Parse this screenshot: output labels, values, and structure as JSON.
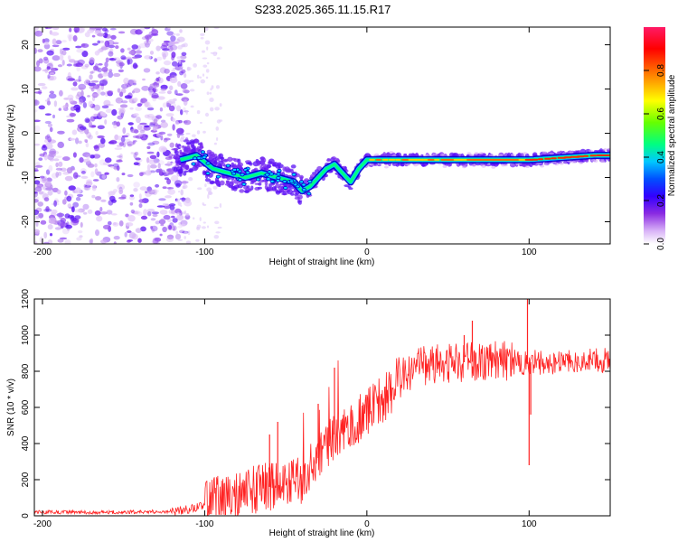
{
  "title": "S233.2025.365.11.15.R17",
  "chart_data": [
    {
      "type": "heatmap",
      "name": "spectrogram",
      "xlabel": "Height of straight line (km)",
      "ylabel": "Frequency (Hz)",
      "xlim": [
        -205,
        150
      ],
      "ylim": [
        -25,
        24
      ],
      "xticks": [
        -200,
        -100,
        0,
        100
      ],
      "yticks": [
        -20,
        -10,
        0,
        10,
        20
      ],
      "colorbar": {
        "label": "Normalized spectral amplitude",
        "range": [
          0,
          1
        ],
        "ticks": [
          0.0,
          0.2,
          0.4,
          0.6,
          0.8
        ],
        "colors": [
          "#ffffff",
          "#d9b3f7",
          "#9b59f0",
          "#6a00ff",
          "#0000ff",
          "#00c8ff",
          "#00ff80",
          "#66ff00",
          "#ffff00",
          "#ff8000",
          "#ff0000",
          "#ff1a66"
        ]
      },
      "ridge": {
        "x": [
          -115,
          -105,
          -95,
          -85,
          -75,
          -65,
          -55,
          -45,
          -40,
          -35,
          -30,
          -25,
          -20,
          -15,
          -10,
          -5,
          0,
          5,
          10,
          20,
          40,
          60,
          80,
          100,
          120,
          140,
          150
        ],
        "y": [
          -6,
          -5,
          -8,
          -9,
          -10,
          -9,
          -10,
          -11,
          -13,
          -12,
          -10,
          -8,
          -7,
          -9,
          -11,
          -8,
          -6,
          -6,
          -6,
          -6,
          -6,
          -6,
          -6,
          -6,
          -5.5,
          -5,
          -5
        ]
      }
    },
    {
      "type": "line",
      "name": "snr",
      "xlabel": "Height of straight line (km)",
      "ylabel": "SNR (10 * v/v)",
      "xlim": [
        -205,
        150
      ],
      "ylim": [
        0,
        1200
      ],
      "xticks": [
        -200,
        -100,
        0,
        100
      ],
      "yticks": [
        0,
        200,
        400,
        600,
        800,
        1000,
        1200
      ],
      "line_color": "#ff2222",
      "envelope": {
        "x": [
          -205,
          -150,
          -120,
          -110,
          -100,
          -90,
          -80,
          -70,
          -60,
          -50,
          -40,
          -30,
          -20,
          -10,
          0,
          10,
          20,
          30,
          40,
          60,
          80,
          95,
          100,
          105,
          120,
          150
        ],
        "y": [
          20,
          20,
          25,
          35,
          60,
          90,
          110,
          140,
          160,
          180,
          200,
          320,
          450,
          500,
          560,
          650,
          750,
          820,
          840,
          850,
          860,
          850,
          850,
          850,
          850,
          860
        ]
      },
      "spikes": [
        {
          "x": -60,
          "y": 450
        },
        {
          "x": -55,
          "y": 520
        },
        {
          "x": -20,
          "y": 820
        },
        {
          "x": -30,
          "y": 620
        },
        {
          "x": 60,
          "y": 1000
        },
        {
          "x": 65,
          "y": 1080
        },
        {
          "x": 99,
          "y": 1200
        },
        {
          "x": 100,
          "y": 280
        },
        {
          "x": 101,
          "y": 560
        }
      ]
    }
  ]
}
